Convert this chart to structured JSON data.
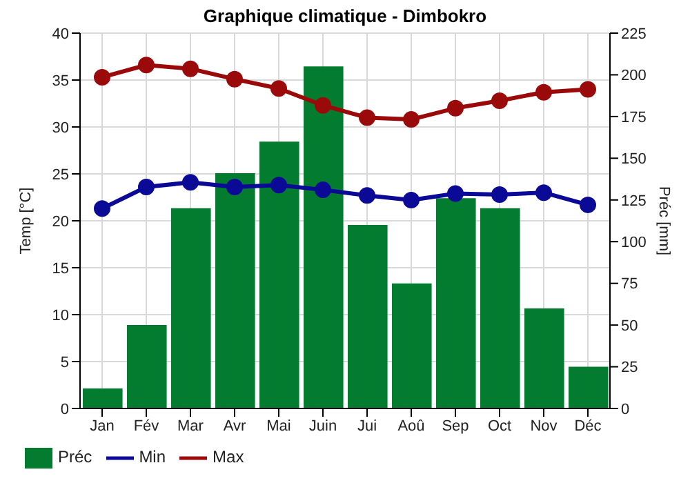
{
  "chart_data": {
    "type": "bar",
    "title": "Graphique climatique - Dimbokro",
    "ylabel": "Temp [°C]",
    "y2label": "Préc [mm]",
    "categories": [
      "Jan",
      "Fév",
      "Mar",
      "Avr",
      "Mai",
      "Juin",
      "Jui",
      "Aoû",
      "Sep",
      "Oct",
      "Nov",
      "Déc"
    ],
    "series": [
      {
        "name": "Préc",
        "axis": "y2",
        "color": "#037c30",
        "values": [
          12,
          50,
          120,
          141,
          160,
          205,
          110,
          75,
          126,
          120,
          60,
          25
        ]
      },
      {
        "name": "Min",
        "type": "line",
        "color": "#0a0a96",
        "values": [
          21.3,
          23.6,
          24.1,
          23.6,
          23.8,
          23.3,
          22.7,
          22.2,
          22.9,
          22.8,
          23.0,
          21.7
        ]
      },
      {
        "name": "Max",
        "type": "line",
        "color": "#9b0a0a",
        "values": [
          35.3,
          36.6,
          36.2,
          35.1,
          34.1,
          32.3,
          31.0,
          30.8,
          32.0,
          32.8,
          33.7,
          34.0
        ]
      }
    ],
    "ylim": [
      0,
      40
    ],
    "yticks": [
      0,
      5,
      10,
      15,
      20,
      25,
      30,
      35,
      40
    ],
    "y2lim": [
      0,
      225
    ],
    "y2ticks": [
      0,
      25,
      50,
      75,
      100,
      125,
      150,
      175,
      200,
      225
    ],
    "grid": true,
    "legend": "bottom left",
    "marker": "circle",
    "line_style": "solid"
  }
}
